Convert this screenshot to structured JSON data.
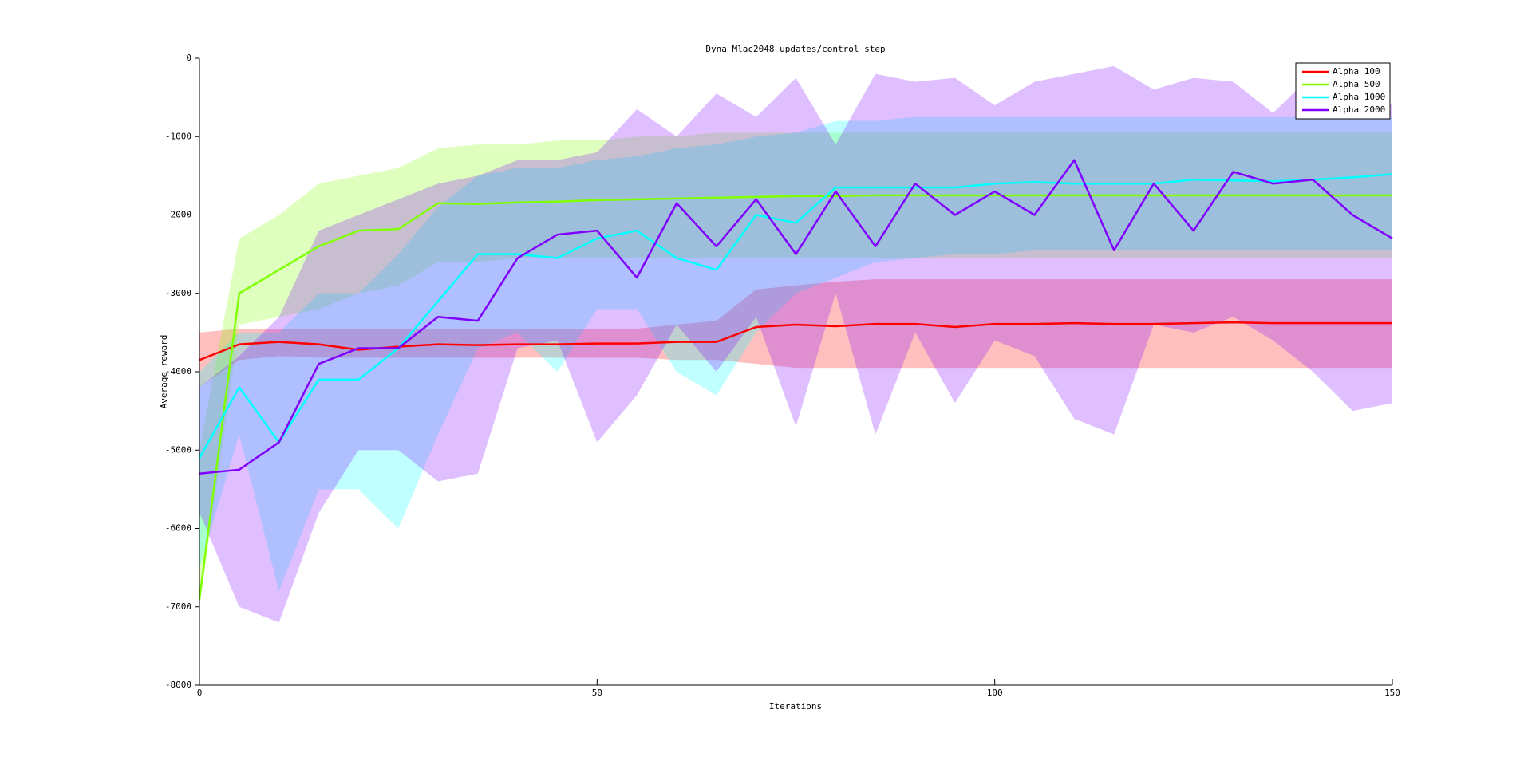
{
  "chart_data": {
    "type": "line",
    "title": "Dyna Mlac2048 updates/control step",
    "x_label": "Iterations",
    "y_label": "Average reward",
    "x": [
      0,
      5,
      10,
      15,
      20,
      25,
      30,
      35,
      40,
      45,
      50,
      55,
      60,
      65,
      70,
      75,
      80,
      85,
      90,
      95,
      100,
      105,
      110,
      115,
      120,
      125,
      130,
      135,
      140,
      145,
      150
    ],
    "xlim": [
      0,
      150
    ],
    "xticks": [
      0,
      50,
      100,
      150
    ],
    "ylim": [
      -8000,
      0
    ],
    "yticks": [
      -8000,
      -7000,
      -6000,
      -5000,
      -4000,
      -3000,
      -2000,
      -1000,
      0
    ],
    "legend": "top-right",
    "series": [
      {
        "name": "Alpha 100",
        "color": "#ff0000",
        "values": [
          -3850,
          -3650,
          -3620,
          -3650,
          -3720,
          -3680,
          -3650,
          -3660,
          -3650,
          -3650,
          -3640,
          -3640,
          -3620,
          -3620,
          -3430,
          -3400,
          -3420,
          -3390,
          -3390,
          -3430,
          -3390,
          -3390,
          -3380,
          -3390,
          -3390,
          -3380,
          -3370,
          -3380,
          -3380,
          -3380,
          -3380
        ],
        "upper": [
          -3500,
          -3450,
          -3450,
          -3450,
          -3450,
          -3450,
          -3450,
          -3450,
          -3450,
          -3450,
          -3450,
          -3450,
          -3400,
          -3350,
          -2950,
          -2900,
          -2850,
          -2820,
          -2820,
          -2820,
          -2820,
          -2820,
          -2820,
          -2820,
          -2820,
          -2820,
          -2820,
          -2820,
          -2820,
          -2820,
          -2820
        ],
        "lower": [
          -4200,
          -3850,
          -3800,
          -3820,
          -3820,
          -3820,
          -3820,
          -3820,
          -3820,
          -3820,
          -3820,
          -3820,
          -3850,
          -3850,
          -3900,
          -3950,
          -3950,
          -3950,
          -3950,
          -3950,
          -3950,
          -3950,
          -3950,
          -3950,
          -3950,
          -3950,
          -3950,
          -3950,
          -3950,
          -3950,
          -3950
        ]
      },
      {
        "name": "Alpha 500",
        "color": "#80ff00",
        "values": [
          -6900,
          -3000,
          -2700,
          -2400,
          -2200,
          -2180,
          -1850,
          -1860,
          -1840,
          -1830,
          -1810,
          -1800,
          -1790,
          -1780,
          -1770,
          -1760,
          -1760,
          -1750,
          -1750,
          -1750,
          -1750,
          -1750,
          -1750,
          -1750,
          -1750,
          -1750,
          -1750,
          -1750,
          -1750,
          -1750,
          -1750
        ],
        "upper": [
          -5000,
          -2300,
          -2000,
          -1600,
          -1500,
          -1400,
          -1150,
          -1100,
          -1100,
          -1050,
          -1050,
          -1000,
          -1000,
          -950,
          -950,
          -950,
          -950,
          -950,
          -950,
          -950,
          -950,
          -950,
          -950,
          -950,
          -950,
          -950,
          -950,
          -950,
          -950,
          -950,
          -950
        ],
        "lower": [
          -7000,
          -3400,
          -3300,
          -3200,
          -3000,
          -2900,
          -2600,
          -2600,
          -2550,
          -2550,
          -2550,
          -2550,
          -2550,
          -2550,
          -2550,
          -2550,
          -2550,
          -2550,
          -2550,
          -2550,
          -2550,
          -2550,
          -2550,
          -2550,
          -2550,
          -2550,
          -2550,
          -2550,
          -2550,
          -2550,
          -2550
        ]
      },
      {
        "name": "Alpha 1000",
        "color": "#00ffff",
        "values": [
          -5100,
          -4200,
          -4900,
          -4100,
          -4100,
          -3700,
          -3100,
          -2500,
          -2500,
          -2550,
          -2300,
          -2200,
          -2550,
          -2700,
          -2000,
          -2100,
          -1650,
          -1650,
          -1650,
          -1650,
          -1600,
          -1580,
          -1600,
          -1600,
          -1600,
          -1550,
          -1560,
          -1570,
          -1550,
          -1520,
          -1480
        ],
        "upper": [
          -4000,
          -3500,
          -3500,
          -3000,
          -3000,
          -2500,
          -1900,
          -1500,
          -1400,
          -1400,
          -1300,
          -1250,
          -1150,
          -1100,
          -1000,
          -950,
          -800,
          -800,
          -750,
          -750,
          -750,
          -750,
          -750,
          -750,
          -750,
          -750,
          -750,
          -750,
          -750,
          -750,
          -750
        ],
        "lower": [
          -6500,
          -4800,
          -6800,
          -5500,
          -5500,
          -6000,
          -4800,
          -3700,
          -3500,
          -4000,
          -3200,
          -3200,
          -4000,
          -4300,
          -3500,
          -3000,
          -2800,
          -2600,
          -2550,
          -2500,
          -2500,
          -2450,
          -2450,
          -2450,
          -2450,
          -2450,
          -2450,
          -2450,
          -2450,
          -2450,
          -2450
        ]
      },
      {
        "name": "Alpha 2000",
        "color": "#8000ff",
        "values": [
          -5300,
          -5250,
          -4900,
          -3900,
          -3700,
          -3700,
          -3300,
          -3350,
          -2550,
          -2250,
          -2200,
          -2800,
          -1850,
          -2400,
          -1800,
          -2500,
          -1700,
          -2400,
          -1600,
          -2000,
          -1700,
          -2000,
          -1300,
          -2450,
          -1600,
          -2200,
          -1450,
          -1600,
          -1550,
          -2000,
          -2300
        ],
        "upper": [
          -4200,
          -3800,
          -3300,
          -2200,
          -2000,
          -1800,
          -1600,
          -1500,
          -1300,
          -1300,
          -1200,
          -650,
          -1000,
          -450,
          -750,
          -250,
          -1100,
          -200,
          -300,
          -250,
          -600,
          -300,
          -200,
          -100,
          -400,
          -250,
          -300,
          -700,
          -200,
          -350,
          -600
        ],
        "lower": [
          -5800,
          -7000,
          -7200,
          -5800,
          -5000,
          -5000,
          -5400,
          -5300,
          -3700,
          -3600,
          -4900,
          -4300,
          -3400,
          -4000,
          -3300,
          -4700,
          -3000,
          -4800,
          -3500,
          -4400,
          -3600,
          -3800,
          -4600,
          -4800,
          -3400,
          -3500,
          -3300,
          -3600,
          -4000,
          -4500,
          -4400
        ]
      }
    ]
  }
}
